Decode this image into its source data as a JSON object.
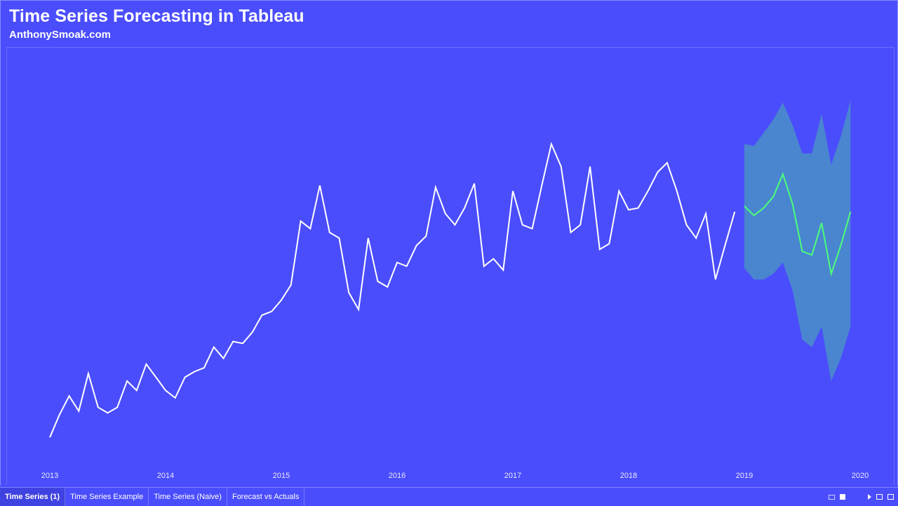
{
  "header": {
    "title": "Time Series Forecasting in Tableau",
    "subtitle": "AnthonySmoak.com"
  },
  "colors": {
    "background": "#4a4dfc",
    "actual_line": "#ffffff",
    "forecast_line": "#4cff7a",
    "prediction_band": "#4a86cf"
  },
  "chart_data": {
    "type": "line",
    "title": "",
    "xlabel": "",
    "ylabel": "",
    "x_ticks": [
      "2013",
      "2014",
      "2015",
      "2016",
      "2017",
      "2018",
      "2019",
      "2020"
    ],
    "xlim": [
      2013,
      2020
    ],
    "ylim": [
      0,
      100
    ],
    "grid": false,
    "series": [
      {
        "role": "actual",
        "x": [
          2013.0,
          2013.083,
          2013.167,
          2013.25,
          2013.333,
          2013.417,
          2013.5,
          2013.583,
          2013.667,
          2013.75,
          2013.833,
          2013.917,
          2014.0,
          2014.083,
          2014.167,
          2014.25,
          2014.333,
          2014.417,
          2014.5,
          2014.583,
          2014.667,
          2014.75,
          2014.833,
          2014.917,
          2015.0,
          2015.083,
          2015.167,
          2015.25,
          2015.333,
          2015.417,
          2015.5,
          2015.583,
          2015.667,
          2015.75,
          2015.833,
          2015.917,
          2016.0,
          2016.083,
          2016.167,
          2016.25,
          2016.333,
          2016.417,
          2016.5,
          2016.583,
          2016.667,
          2016.75,
          2016.833,
          2016.917,
          2017.0,
          2017.083,
          2017.167,
          2017.25,
          2017.333,
          2017.417,
          2017.5,
          2017.583,
          2017.667,
          2017.75,
          2017.833,
          2017.917,
          2018.0,
          2018.083,
          2018.167,
          2018.25,
          2018.333,
          2018.417,
          2018.5,
          2018.583,
          2018.667,
          2018.75,
          2018.833,
          2018.917
        ],
        "values": [
          2,
          8,
          13,
          9,
          19,
          10,
          8.5,
          10,
          17,
          14.5,
          21.5,
          18,
          14.5,
          12.5,
          18,
          19.5,
          20.5,
          26,
          23,
          27.5,
          27,
          30,
          34.5,
          35.5,
          38.5,
          42.5,
          59.5,
          57.5,
          69,
          56.5,
          55,
          40.5,
          36,
          55,
          43.5,
          42,
          48.5,
          47.5,
          53,
          55.5,
          68.5,
          61.5,
          58.5,
          63,
          69.5,
          47.5,
          49.5,
          46.5,
          67.5,
          58.5,
          57.5,
          69,
          80,
          74,
          56.5,
          58.5,
          74,
          52,
          53.5,
          67.5,
          62.5,
          63,
          67.5,
          72.5,
          75,
          67.5,
          58.5,
          55,
          61.5,
          44,
          53,
          62
        ]
      },
      {
        "role": "forecast",
        "x": [
          2019.0,
          2019.083,
          2019.167,
          2019.25,
          2019.333,
          2019.417,
          2019.5,
          2019.583,
          2019.667,
          2019.75,
          2019.833,
          2019.917
        ],
        "values": [
          63.5,
          61,
          63,
          66,
          72,
          64,
          51.5,
          50.5,
          59,
          45.5,
          53,
          62
        ],
        "upper": [
          80,
          79.5,
          83,
          86.5,
          91,
          85,
          77.5,
          77.5,
          88,
          74.5,
          82,
          91.5
        ],
        "lower": [
          47,
          44,
          44,
          45.5,
          48.5,
          41,
          28,
          26,
          31.5,
          17,
          23,
          31.5
        ]
      }
    ]
  },
  "tabs": [
    {
      "label": "Time Series (1)",
      "active": true
    },
    {
      "label": "Time Series Example",
      "active": false
    },
    {
      "label": "Time Series (Naive)",
      "active": false
    },
    {
      "label": "Forecast vs Actuals",
      "active": false
    }
  ]
}
